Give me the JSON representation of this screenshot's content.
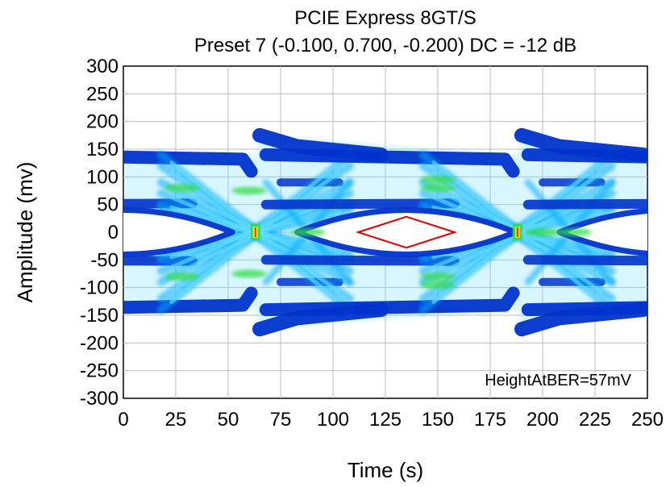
{
  "chart_data": {
    "type": "eye-diagram",
    "title": "PCIE Express 8GT/S",
    "subtitle": "Preset 7 (-0.100, 0.700, -0.200) DC = -12 dB",
    "xlabel": "Time (s)",
    "ylabel": "Amplitude (mv)",
    "xlim": [
      0,
      250
    ],
    "ylim": [
      -300,
      300
    ],
    "xticks": [
      0,
      25,
      50,
      75,
      100,
      125,
      150,
      175,
      200,
      225,
      250
    ],
    "yticks": [
      300,
      250,
      200,
      150,
      100,
      50,
      0,
      -50,
      -100,
      -150,
      -200,
      -250,
      -300
    ],
    "grid": true,
    "annotation": "HeightAtBER=57mV",
    "eye_height_mv": 57,
    "unit_interval": 125,
    "crossing_times": [
      63,
      188
    ],
    "eye_center_times": [
      0,
      135,
      260
    ],
    "levels_mv": [
      140,
      90,
      50,
      0,
      -50,
      -90,
      -140
    ],
    "edge_peak_mv": 175,
    "eye_mask": [
      {
        "x": 112,
        "y": 0
      },
      {
        "x": 135,
        "y": 28
      },
      {
        "x": 158,
        "y": 0
      },
      {
        "x": 135,
        "y": -28
      }
    ],
    "colors": {
      "trace_dense": "#0033cc",
      "trace_mid": "#00aaff",
      "trace_light": "#66ddff",
      "hot_green": "#33dd44",
      "hot_yellow": "#ddee22",
      "hot_red": "#ff2222",
      "mask": "#dd0000"
    }
  }
}
